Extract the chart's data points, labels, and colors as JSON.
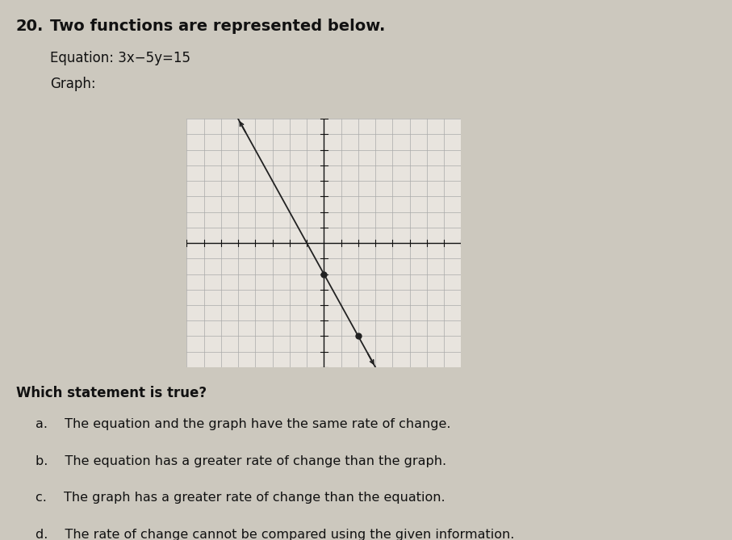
{
  "title_number": "20.",
  "title_bold": "Two functions are represented below.",
  "equation_label": "Equation: 3x−5y=15",
  "graph_label": "Graph:",
  "question": "Which statement is true?",
  "answers": [
    "a.  The equation and the graph have the same rate of change.",
    "b.  The equation has a greater rate of change than the graph.",
    "c.  The graph has a greater rate of change than the equation.",
    "d.  The rate of change cannot be compared using the given information."
  ],
  "graph": {
    "x_range": [
      -8,
      8
    ],
    "y_range": [
      -8,
      8
    ],
    "line_slope": -2,
    "line_intercept": -2,
    "dot_points": [
      [
        0,
        -2
      ],
      [
        2,
        -6
      ]
    ],
    "line_color": "#222222",
    "grid_color": "#aaaaaa",
    "axis_color": "#111111",
    "background_color": "#e8e4de",
    "line_width": 1.3,
    "dot_color": "#222222",
    "dot_size": 25
  },
  "bg_color": "#ccc8be",
  "text_color": "#111111",
  "font_size_title": 14,
  "font_size_eq": 12,
  "font_size_answers": 11.5
}
